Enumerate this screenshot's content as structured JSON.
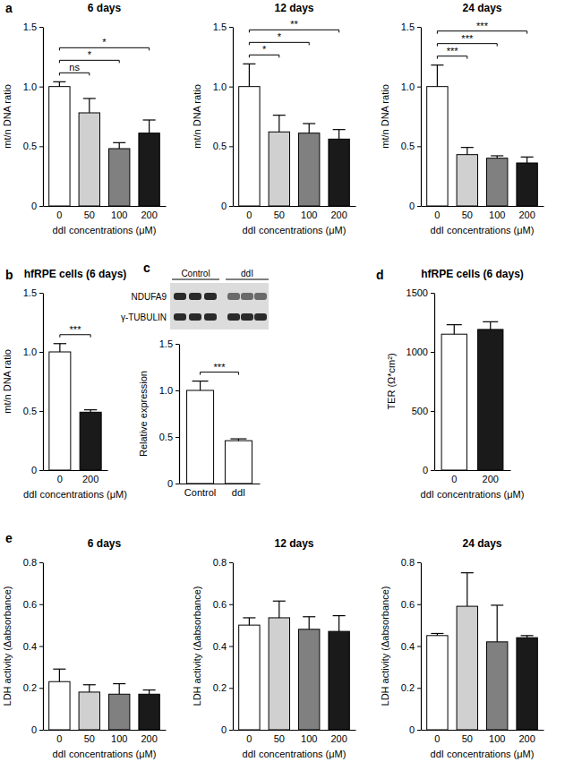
{
  "chart_data": [
    {
      "type": "bar",
      "panel": "a",
      "title": "6 days",
      "x_label": "ddI concentrations (μM)",
      "y_label": "mt/n DNA ratio",
      "categories": [
        "0",
        "50",
        "100",
        "200"
      ],
      "values": [
        1.0,
        0.78,
        0.48,
        0.61
      ],
      "errors": [
        0.04,
        0.12,
        0.05,
        0.11
      ],
      "colors": [
        "#ffffff",
        "#d0d0d0",
        "#808080",
        "#1a1a1a"
      ],
      "ylim": [
        0,
        1.5
      ],
      "yticks": [
        0,
        0.5,
        {
          "value": 1,
          "label": "1.0"
        },
        1.5
      ],
      "annotations": [
        {
          "between": [
            "0",
            "50"
          ],
          "label": "ns"
        },
        {
          "between": [
            "0",
            "100"
          ],
          "label": "*"
        },
        {
          "between": [
            "0",
            "200"
          ],
          "label": "*"
        }
      ]
    },
    {
      "type": "bar",
      "title": "12 days",
      "x_label": "ddI concentrations (μM)",
      "y_label": "mt/n DNA ratio",
      "categories": [
        "0",
        "50",
        "100",
        "200"
      ],
      "values": [
        1.0,
        0.62,
        0.61,
        0.56
      ],
      "errors": [
        0.19,
        0.14,
        0.08,
        0.08
      ],
      "colors": [
        "#ffffff",
        "#d0d0d0",
        "#808080",
        "#1a1a1a"
      ],
      "ylim": [
        0,
        1.5
      ],
      "yticks": [
        0,
        0.5,
        {
          "value": 1,
          "label": "1.0"
        },
        1.5
      ],
      "annotations": [
        {
          "between": [
            "0",
            "50"
          ],
          "label": "*"
        },
        {
          "between": [
            "0",
            "100"
          ],
          "label": "*"
        },
        {
          "between": [
            "0",
            "200"
          ],
          "label": "**"
        }
      ]
    },
    {
      "type": "bar",
      "title": "24 days",
      "x_label": "ddI concentrations (μM)",
      "y_label": "mt/n DNA ratio",
      "categories": [
        "0",
        "50",
        "100",
        "200"
      ],
      "values": [
        1.0,
        0.43,
        0.4,
        0.36
      ],
      "errors": [
        0.18,
        0.06,
        0.02,
        0.05
      ],
      "colors": [
        "#ffffff",
        "#d0d0d0",
        "#808080",
        "#1a1a1a"
      ],
      "ylim": [
        0,
        1.5
      ],
      "yticks": [
        0,
        0.5,
        {
          "value": 1,
          "label": "1.0"
        },
        1.5
      ],
      "annotations": [
        {
          "between": [
            "0",
            "50"
          ],
          "label": "***"
        },
        {
          "between": [
            "0",
            "100"
          ],
          "label": "***"
        },
        {
          "between": [
            "0",
            "200"
          ],
          "label": "***"
        }
      ]
    },
    {
      "type": "bar",
      "panel": "b",
      "title": "hfRPE cells (6 days)",
      "x_label": "ddI concentrations (μM)",
      "y_label": "mt/n DNA ratio",
      "categories": [
        "0",
        "200"
      ],
      "values": [
        1.0,
        0.49
      ],
      "errors": [
        0.07,
        0.02
      ],
      "colors": [
        "#ffffff",
        "#1a1a1a"
      ],
      "ylim": [
        0,
        1.5
      ],
      "yticks": [
        0,
        0.5,
        {
          "value": 1,
          "label": "1.0"
        },
        1.5
      ],
      "annotations": [
        {
          "between": [
            "0",
            "200"
          ],
          "label": "***"
        }
      ]
    },
    {
      "type": "bar",
      "panel": "c",
      "y_label": "Relative expression",
      "blot": {
        "lanes": [
          "Control",
          "ddI"
        ],
        "rows": [
          "NDUFA9",
          "γ-TUBULIN"
        ]
      },
      "categories": [
        "Control",
        "ddI"
      ],
      "values": [
        1.0,
        0.46
      ],
      "errors": [
        0.1,
        0.02
      ],
      "colors": [
        "#ffffff",
        "#ffffff"
      ],
      "ylim": [
        0,
        1.5
      ],
      "yticks": [
        0,
        0.5,
        {
          "value": 1,
          "label": "1.0"
        },
        1.5
      ],
      "annotations": [
        {
          "between": [
            "Control",
            "ddI"
          ],
          "label": "***"
        }
      ]
    },
    {
      "type": "bar",
      "panel": "d",
      "title": "hfRPE cells (6 days)",
      "x_label": "ddI concentrations (μM)",
      "y_label": "TER (Ω*cm²)",
      "categories": [
        "0",
        "200"
      ],
      "values": [
        1150,
        1190
      ],
      "errors": [
        80,
        65
      ],
      "colors": [
        "#ffffff",
        "#1a1a1a"
      ],
      "ylim": [
        0,
        1500
      ],
      "yticks": [
        0,
        500,
        1000,
        1500
      ]
    },
    {
      "type": "bar",
      "panel": "e",
      "title": "6 days",
      "x_label": "ddI concentrations (μM)",
      "y_label": "LDH activity (Δabsorbance)",
      "categories": [
        "0",
        "50",
        "100",
        "200"
      ],
      "values": [
        0.23,
        0.18,
        0.17,
        0.17
      ],
      "errors": [
        0.06,
        0.035,
        0.05,
        0.02
      ],
      "colors": [
        "#ffffff",
        "#d0d0d0",
        "#808080",
        "#1a1a1a"
      ],
      "ylim": [
        0,
        0.8
      ],
      "yticks": [
        0,
        0.2,
        0.4,
        0.6,
        0.8
      ]
    },
    {
      "type": "bar",
      "title": "12 days",
      "x_label": "ddI concentrations (μM)",
      "y_label": "LDH activity (Δabsorbance)",
      "categories": [
        "0",
        "50",
        "100",
        "200"
      ],
      "values": [
        0.5,
        0.535,
        0.48,
        0.47
      ],
      "errors": [
        0.035,
        0.08,
        0.06,
        0.075
      ],
      "colors": [
        "#ffffff",
        "#d0d0d0",
        "#808080",
        "#1a1a1a"
      ],
      "ylim": [
        0,
        0.8
      ],
      "yticks": [
        0,
        0.2,
        0.4,
        0.6,
        0.8
      ]
    },
    {
      "type": "bar",
      "title": "24 days",
      "x_label": "ddI concentrations (μM)",
      "y_label": "LDH activity (Δabsorbance)",
      "categories": [
        "0",
        "50",
        "100",
        "200"
      ],
      "values": [
        0.45,
        0.59,
        0.42,
        0.44
      ],
      "errors": [
        0.01,
        0.16,
        0.175,
        0.01
      ],
      "colors": [
        "#ffffff",
        "#d0d0d0",
        "#808080",
        "#1a1a1a"
      ],
      "ylim": [
        0,
        0.8
      ],
      "yticks": [
        0,
        0.2,
        0.4,
        0.6,
        0.8
      ]
    }
  ]
}
